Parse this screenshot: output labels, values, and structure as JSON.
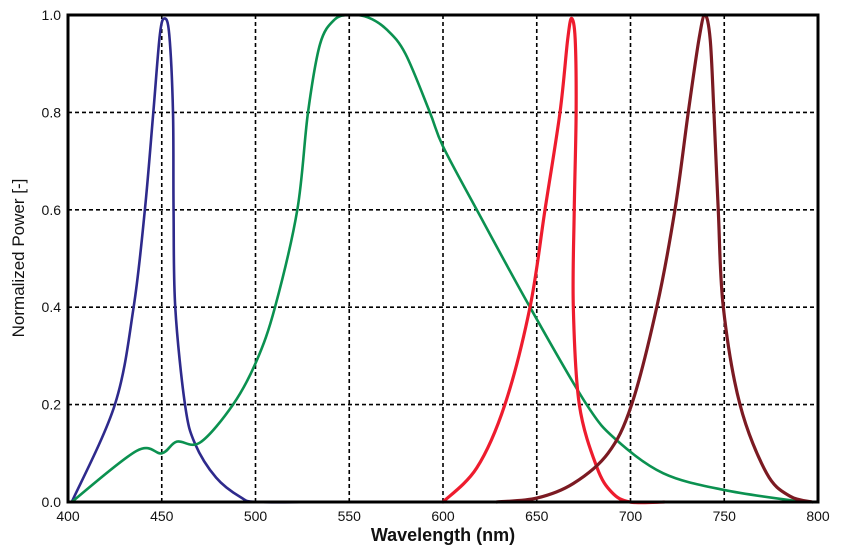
{
  "chart_data": {
    "type": "line",
    "title": "",
    "xlabel": "Wavelength (nm)",
    "ylabel": "Normalized Power [-]",
    "xlim": [
      400,
      800
    ],
    "ylim": [
      0,
      1.0
    ],
    "xticks": [
      "400",
      "450",
      "500",
      "550",
      "600",
      "650",
      "700",
      "750",
      "800"
    ],
    "yticks": [
      "0.0",
      "0.2",
      "0.4",
      "0.6",
      "0.8",
      "1.0"
    ],
    "grid": "dashed",
    "legend": "none",
    "series": [
      {
        "color": "#2e2a8c",
        "points": [
          [
            402,
            0
          ],
          [
            425,
            0.2
          ],
          [
            435,
            0.4
          ],
          [
            441,
            0.6
          ],
          [
            445.5,
            0.8
          ],
          [
            449,
            0.96
          ],
          [
            451.5,
            0.993
          ],
          [
            454,
            0.96
          ],
          [
            456,
            0.8
          ],
          [
            456.3,
            0.6
          ],
          [
            457.2,
            0.4
          ],
          [
            462.4,
            0.2
          ],
          [
            467.7,
            0.12
          ],
          [
            479,
            0.05
          ],
          [
            492,
            0.01
          ],
          [
            501,
            0
          ],
          [
            536,
            0
          ]
        ]
      },
      {
        "color": "#0b9150",
        "points": [
          [
            402,
            0
          ],
          [
            436.6,
            0.105
          ],
          [
            450,
            0.1
          ],
          [
            458,
            0.124
          ],
          [
            470.4,
            0.122
          ],
          [
            488,
            0.2
          ],
          [
            500.6,
            0.29
          ],
          [
            510.4,
            0.4
          ],
          [
            522.3,
            0.6
          ],
          [
            528,
            0.8
          ],
          [
            534.4,
            0.94
          ],
          [
            542,
            0.99
          ],
          [
            550,
            1.0
          ],
          [
            560,
            0.995
          ],
          [
            570,
            0.97
          ],
          [
            580,
            0.92
          ],
          [
            593,
            0.8
          ],
          [
            600,
            0.73
          ],
          [
            618,
            0.6
          ],
          [
            646.4,
            0.4
          ],
          [
            676.6,
            0.2
          ],
          [
            692.6,
            0.127
          ],
          [
            717.5,
            0.059
          ],
          [
            749.5,
            0.025
          ],
          [
            788.6,
            0.002
          ],
          [
            800,
            0
          ]
        ]
      },
      {
        "color": "#ee1c2e",
        "points": [
          [
            600,
            0
          ],
          [
            618,
            0.07
          ],
          [
            633,
            0.2
          ],
          [
            646.4,
            0.4
          ],
          [
            654.4,
            0.6
          ],
          [
            662.4,
            0.8
          ],
          [
            666.5,
            0.95
          ],
          [
            668.6,
            0.993
          ],
          [
            670.5,
            0.95
          ],
          [
            671,
            0.8
          ],
          [
            670,
            0.6
          ],
          [
            669.5,
            0.4
          ],
          [
            672.7,
            0.2
          ],
          [
            682,
            0.072
          ],
          [
            690,
            0.02
          ],
          [
            699.7,
            0
          ],
          [
            718,
            0
          ]
        ]
      },
      {
        "color": "#7b1a22",
        "points": [
          [
            628.6,
            0
          ],
          [
            650,
            0.008
          ],
          [
            669.5,
            0.038
          ],
          [
            688,
            0.1
          ],
          [
            700.6,
            0.2
          ],
          [
            714,
            0.4
          ],
          [
            723.7,
            0.6
          ],
          [
            730.8,
            0.8
          ],
          [
            736.5,
            0.95
          ],
          [
            739.7,
            1.0
          ],
          [
            742.5,
            0.95
          ],
          [
            744.5,
            0.8
          ],
          [
            746.8,
            0.6
          ],
          [
            749.5,
            0.4
          ],
          [
            758.4,
            0.2
          ],
          [
            772.6,
            0.059
          ],
          [
            785,
            0.012
          ],
          [
            797,
            0
          ]
        ]
      }
    ]
  }
}
